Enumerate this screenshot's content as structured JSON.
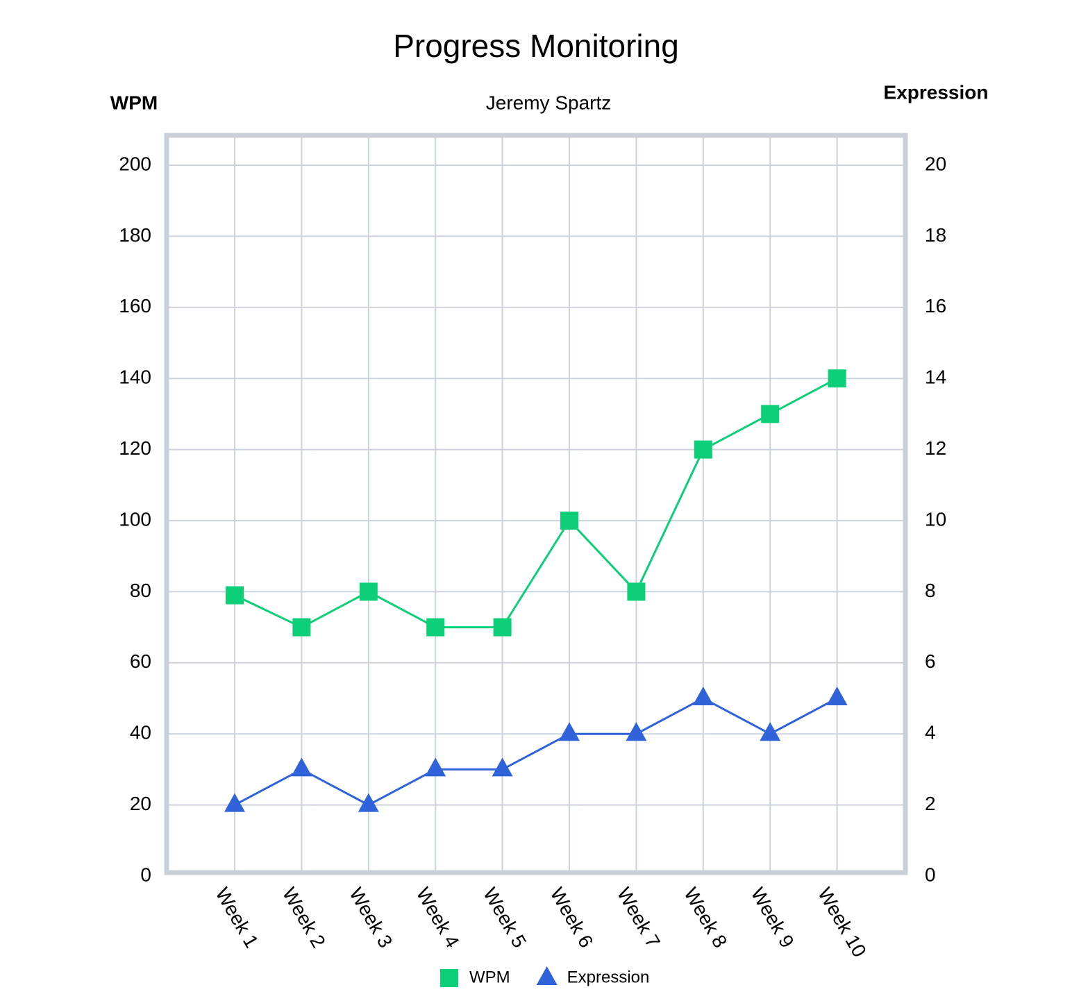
{
  "chart_data": {
    "type": "line",
    "title": "Progress Monitoring",
    "subtitle": "Jeremy Spartz",
    "y_label": "WPM",
    "y2_label": "Expression",
    "categories": [
      "Week 1",
      "Week 2",
      "Week 3",
      "Week 4",
      "Week 5",
      "Week 6",
      "Week 7",
      "Week 8",
      "Week 9",
      "Week 10"
    ],
    "series": [
      {
        "name": "WPM",
        "color": "#0ccf78",
        "marker": "square",
        "values": [
          79,
          70,
          80,
          70,
          70,
          100,
          80,
          120,
          130,
          140
        ]
      },
      {
        "name": "Expression",
        "color": "#3062d9",
        "marker": "triangle",
        "axis": "y2",
        "values": [
          2,
          3,
          2,
          3,
          3,
          4,
          4,
          5,
          4,
          5
        ]
      }
    ],
    "ylim": [
      0,
      200
    ],
    "yticks": [
      0,
      20,
      40,
      60,
      80,
      100,
      120,
      140,
      160,
      180,
      200
    ],
    "y2lim": [
      0,
      20
    ],
    "y2ticks": [
      0,
      2,
      4,
      6,
      8,
      10,
      12,
      14,
      16,
      18,
      20
    ],
    "grid": true,
    "legend": "bottom"
  }
}
